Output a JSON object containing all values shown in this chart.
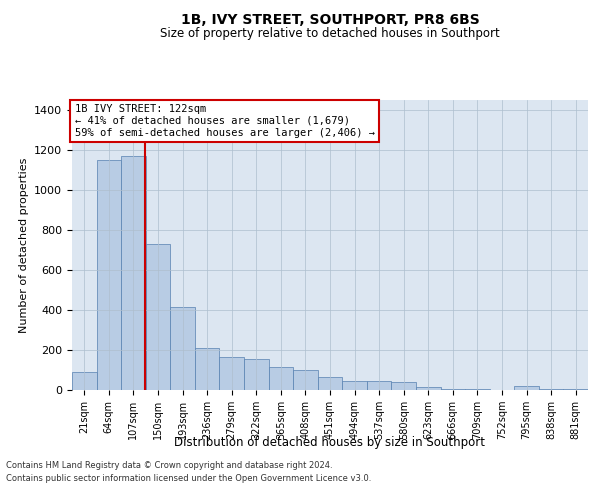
{
  "title": "1B, IVY STREET, SOUTHPORT, PR8 6BS",
  "subtitle": "Size of property relative to detached houses in Southport",
  "xlabel": "Distribution of detached houses by size in Southport",
  "ylabel": "Number of detached properties",
  "bar_labels": [
    "21sqm",
    "64sqm",
    "107sqm",
    "150sqm",
    "193sqm",
    "236sqm",
    "279sqm",
    "322sqm",
    "365sqm",
    "408sqm",
    "451sqm",
    "494sqm",
    "537sqm",
    "580sqm",
    "623sqm",
    "666sqm",
    "709sqm",
    "752sqm",
    "795sqm",
    "838sqm",
    "881sqm"
  ],
  "bar_values": [
    90,
    1150,
    1170,
    730,
    415,
    210,
    165,
    155,
    115,
    100,
    65,
    45,
    45,
    40,
    15,
    5,
    5,
    0,
    20,
    5,
    5
  ],
  "bar_color": "#b8cce4",
  "bar_edge_color": "#5580b0",
  "background_color": "#dce6f1",
  "annotation_text": "1B IVY STREET: 122sqm\n← 41% of detached houses are smaller (1,679)\n59% of semi-detached houses are larger (2,406) →",
  "annotation_box_color": "#ffffff",
  "annotation_box_edge": "#cc0000",
  "vline_color": "#cc0000",
  "vline_x": 2.47,
  "ylim": [
    0,
    1450
  ],
  "yticks": [
    0,
    200,
    400,
    600,
    800,
    1000,
    1200,
    1400
  ],
  "footer_line1": "Contains HM Land Registry data © Crown copyright and database right 2024.",
  "footer_line2": "Contains public sector information licensed under the Open Government Licence v3.0."
}
